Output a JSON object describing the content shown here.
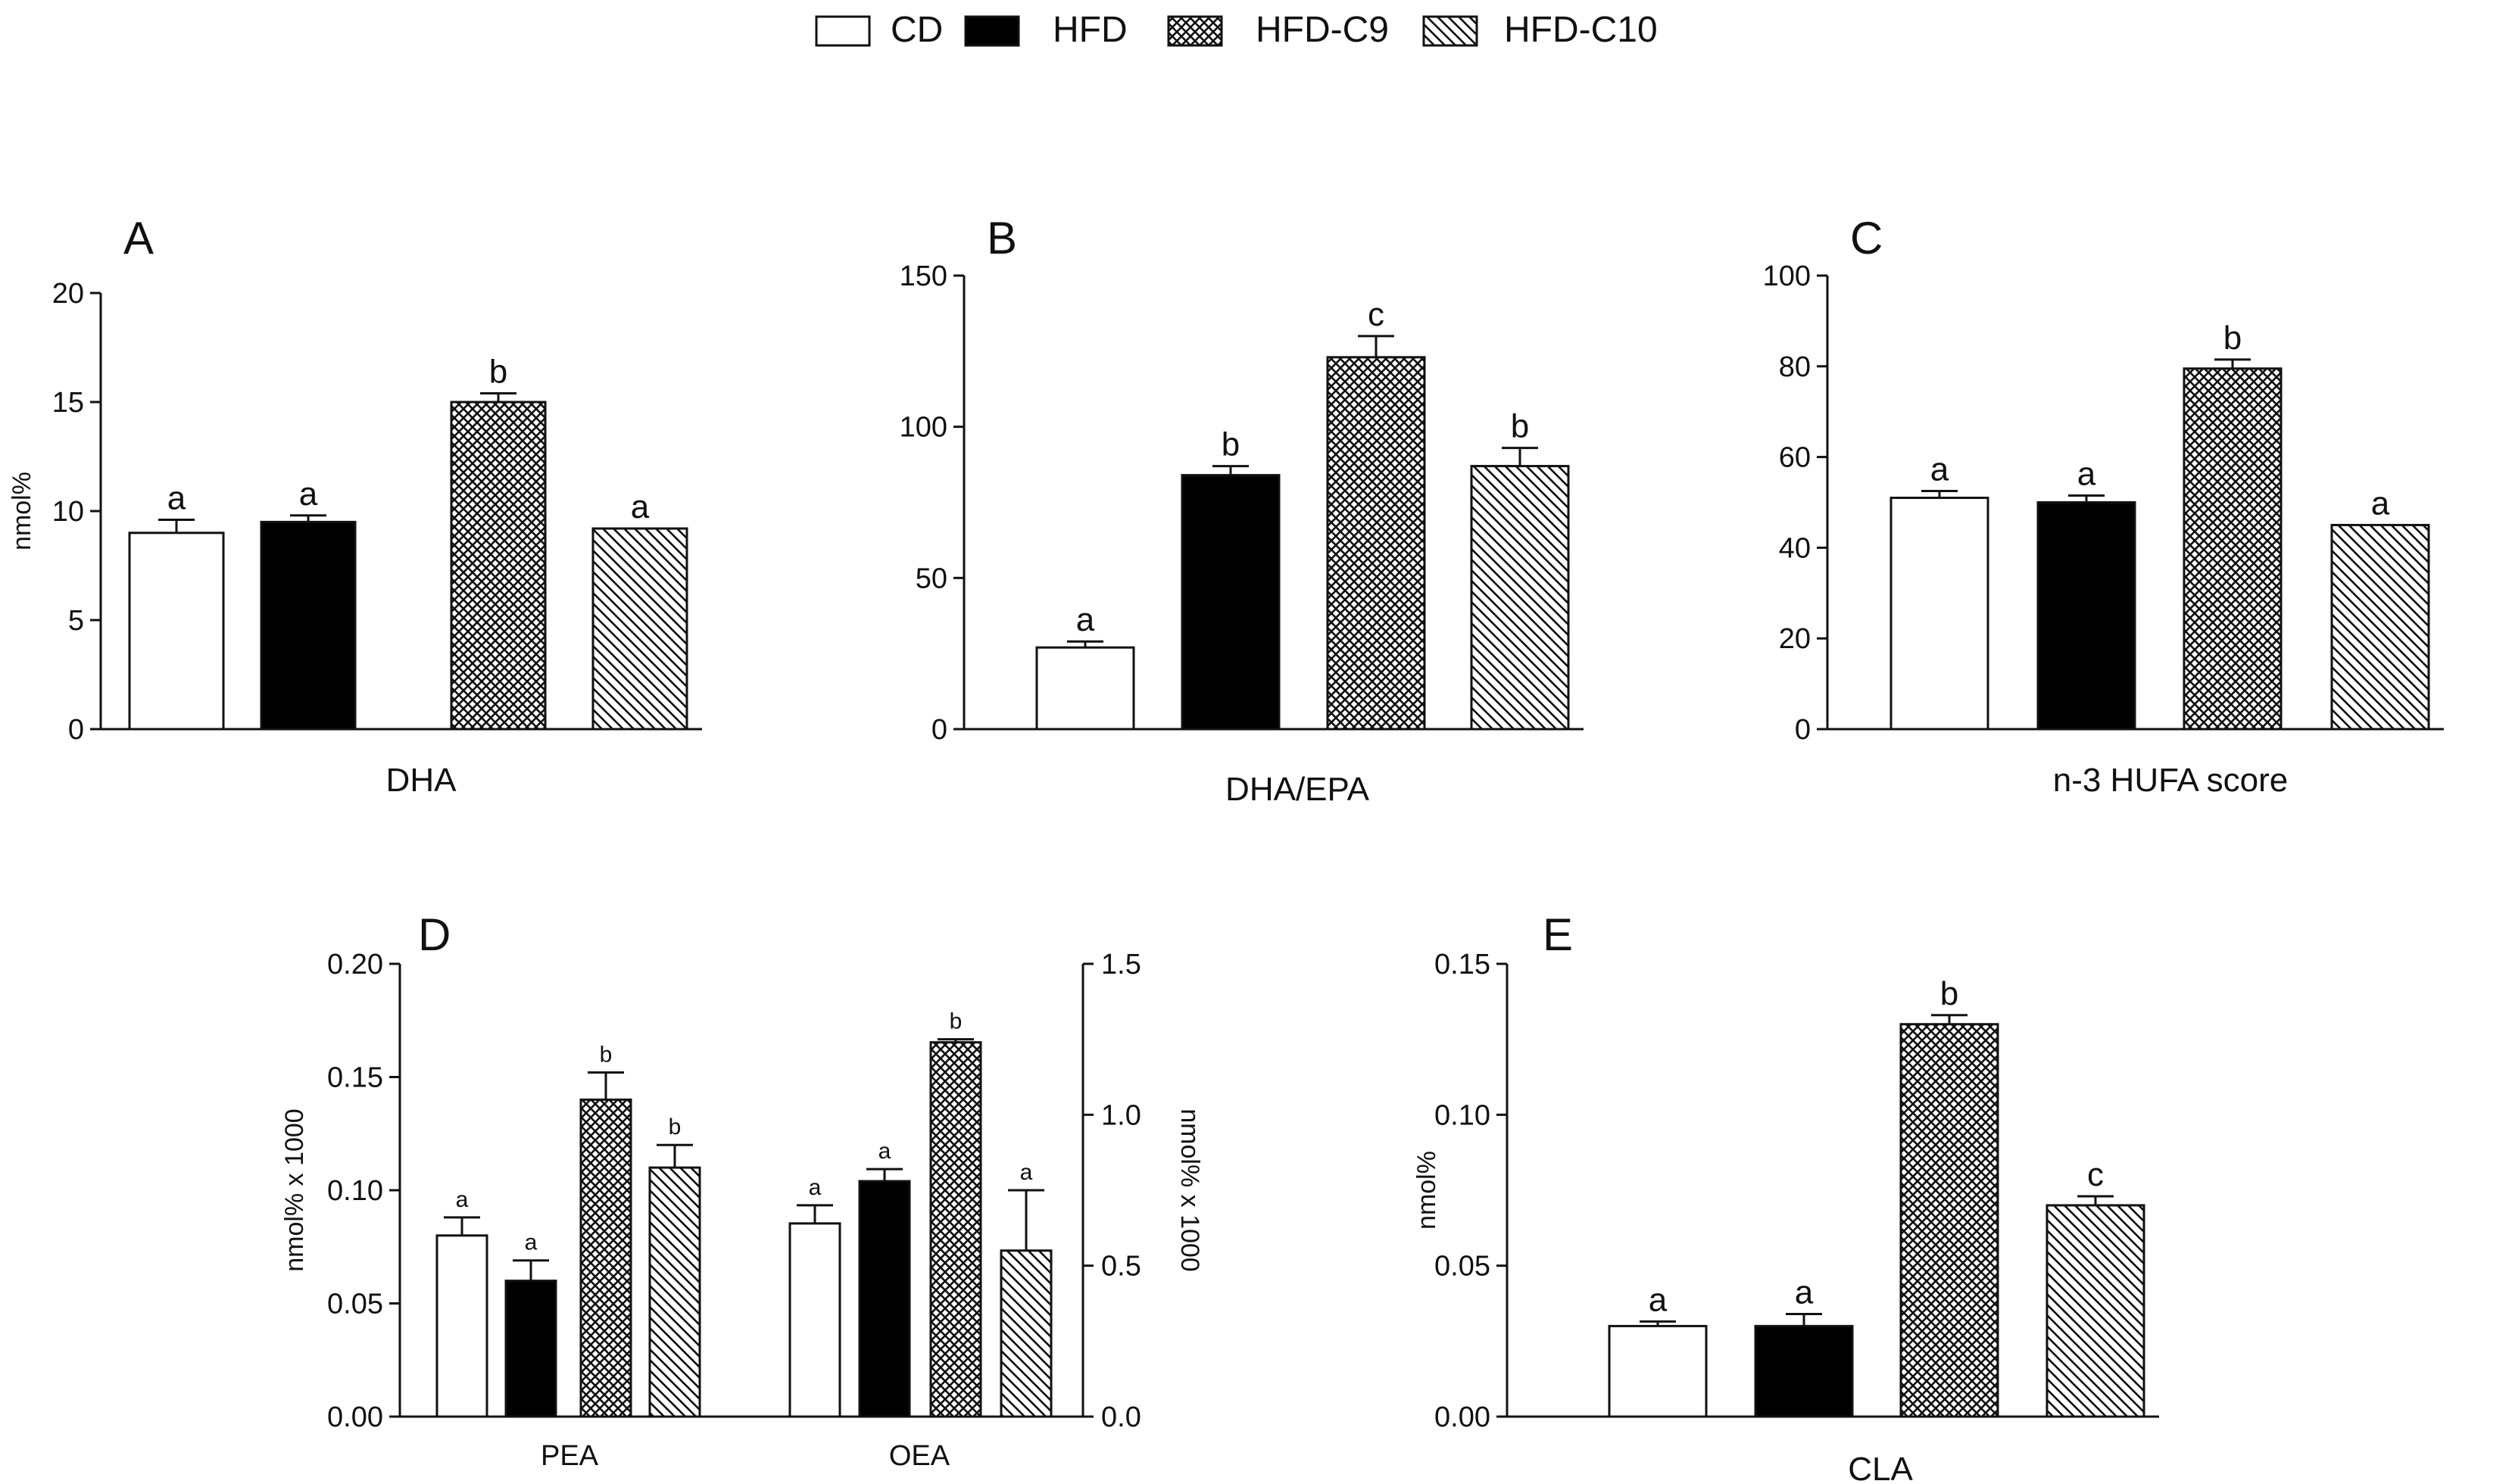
{
  "legend": {
    "groups": [
      {
        "name": "CD",
        "pattern": "white"
      },
      {
        "name": "HFD",
        "pattern": "black"
      },
      {
        "name": "HFD-C9",
        "pattern": "crosshatch"
      },
      {
        "name": "HFD-C10",
        "pattern": "diagonal"
      }
    ]
  },
  "colors": {
    "axis": "#111111",
    "bar_stroke": "#111111",
    "hfd_fill": "#000000",
    "cd_fill": "#ffffff"
  },
  "chart_data": [
    {
      "panel": "A",
      "type": "bar",
      "xlabel": "DHA",
      "ylabel": "nmol%",
      "ylim": [
        0,
        20
      ],
      "yticks": [
        0,
        5,
        10,
        15,
        20
      ],
      "categories": [
        "CD",
        "HFD",
        "HFD-C9",
        "HFD-C10"
      ],
      "values": [
        9.0,
        9.5,
        15.0,
        9.2
      ],
      "errors": [
        0.6,
        0.3,
        0.4,
        0.0
      ],
      "labels": [
        "a",
        "a",
        "b",
        "a"
      ]
    },
    {
      "panel": "B",
      "type": "bar",
      "xlabel": "DHA/EPA",
      "ylabel": "",
      "ylim": [
        0,
        150
      ],
      "yticks": [
        0,
        50,
        100,
        150
      ],
      "categories": [
        "CD",
        "HFD",
        "HFD-C9",
        "HFD-C10"
      ],
      "values": [
        27,
        84,
        123,
        87
      ],
      "errors": [
        2,
        3,
        7,
        6
      ],
      "labels": [
        "a",
        "b",
        "c",
        "b"
      ]
    },
    {
      "panel": "C",
      "type": "bar",
      "xlabel": "n-3 HUFA score",
      "ylabel": "",
      "ylim": [
        0,
        100
      ],
      "yticks": [
        0,
        20,
        40,
        60,
        80,
        100
      ],
      "categories": [
        "CD",
        "HFD",
        "HFD-C9",
        "HFD-C10"
      ],
      "values": [
        51,
        50,
        79.5,
        45
      ],
      "errors": [
        1.5,
        1.5,
        2,
        0
      ],
      "labels": [
        "a",
        "a",
        "b",
        "a"
      ]
    },
    {
      "panel": "D",
      "type": "bar",
      "dual_axis": true,
      "ylabel": "nmol% x 1000",
      "ylabel_right": "nmol% x 1000",
      "ylim": [
        0,
        0.2
      ],
      "yticks": [
        "0.00",
        "0.05",
        "0.10",
        "0.15",
        "0.20"
      ],
      "ylim_right": [
        0,
        1.5
      ],
      "yticks_right": [
        "0.0",
        "0.5",
        "1.0",
        "1.5"
      ],
      "series": [
        {
          "name": "PEA",
          "axis": "left",
          "values": [
            0.08,
            0.06,
            0.14,
            0.11
          ],
          "errors": [
            0.008,
            0.009,
            0.012,
            0.01
          ],
          "labels": [
            "a",
            "a",
            "b",
            "b"
          ]
        },
        {
          "name": "OEA",
          "axis": "right",
          "values": [
            0.64,
            0.78,
            1.24,
            0.55
          ],
          "errors": [
            0.06,
            0.04,
            0.01,
            0.2
          ],
          "labels": [
            "a",
            "a",
            "b",
            "a"
          ]
        }
      ],
      "categories": [
        "CD",
        "HFD",
        "HFD-C9",
        "HFD-C10"
      ]
    },
    {
      "panel": "E",
      "type": "bar",
      "xlabel": "CLA",
      "ylabel": "nmol%",
      "ylim": [
        0,
        0.15
      ],
      "yticks": [
        "0.00",
        "0.05",
        "0.10",
        "0.15"
      ],
      "categories": [
        "CD",
        "HFD",
        "HFD-C9",
        "HFD-C10"
      ],
      "values": [
        0.03,
        0.03,
        0.13,
        0.07
      ],
      "errors": [
        0.0015,
        0.004,
        0.003,
        0.003
      ],
      "labels": [
        "a",
        "a",
        "b",
        "c"
      ]
    }
  ]
}
